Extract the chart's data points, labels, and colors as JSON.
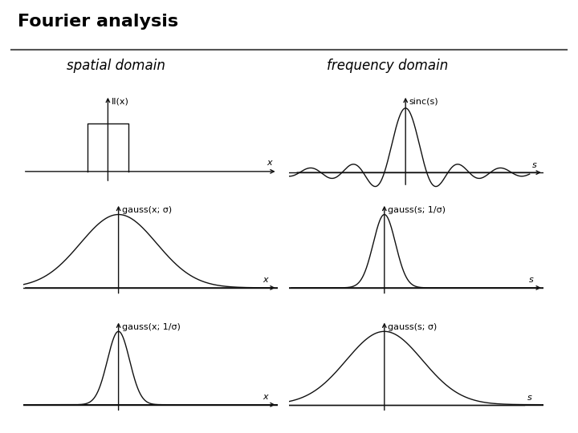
{
  "title": "Fourier analysis",
  "title_fontsize": 16,
  "title_fontweight": "bold",
  "col1_label": "spatial domain",
  "col2_label": "frequency domain",
  "label_fontsize": 12,
  "background_color": "#ffffff",
  "line_color": "#000000",
  "plots": [
    {
      "row": 0,
      "col": 0,
      "type": "rect",
      "xlabel": "x",
      "ylabel": "II(x)",
      "has_arrow_x": true,
      "has_arrow_y": true
    },
    {
      "row": 0,
      "col": 1,
      "type": "sinc",
      "xlabel": "s",
      "ylabel": "sinc(s)",
      "has_arrow_x": true,
      "has_arrow_y": true
    },
    {
      "row": 1,
      "col": 0,
      "type": "gauss_wide",
      "xlabel": "x",
      "ylabel": "gauss(x; σ)",
      "has_arrow_x": true,
      "has_arrow_y": true
    },
    {
      "row": 1,
      "col": 1,
      "type": "gauss_narrow",
      "xlabel": "s",
      "ylabel": "gauss(s; 1/σ)",
      "has_arrow_x": true,
      "has_arrow_y": true
    },
    {
      "row": 2,
      "col": 0,
      "type": "gauss_narrow",
      "xlabel": "x",
      "ylabel": "gauss(x; 1/σ)",
      "has_arrow_x": true,
      "has_arrow_y": true
    },
    {
      "row": 2,
      "col": 1,
      "type": "gauss_wide",
      "xlabel": "s",
      "ylabel": "gauss(s; σ)",
      "has_arrow_x": false,
      "has_arrow_y": true
    }
  ]
}
